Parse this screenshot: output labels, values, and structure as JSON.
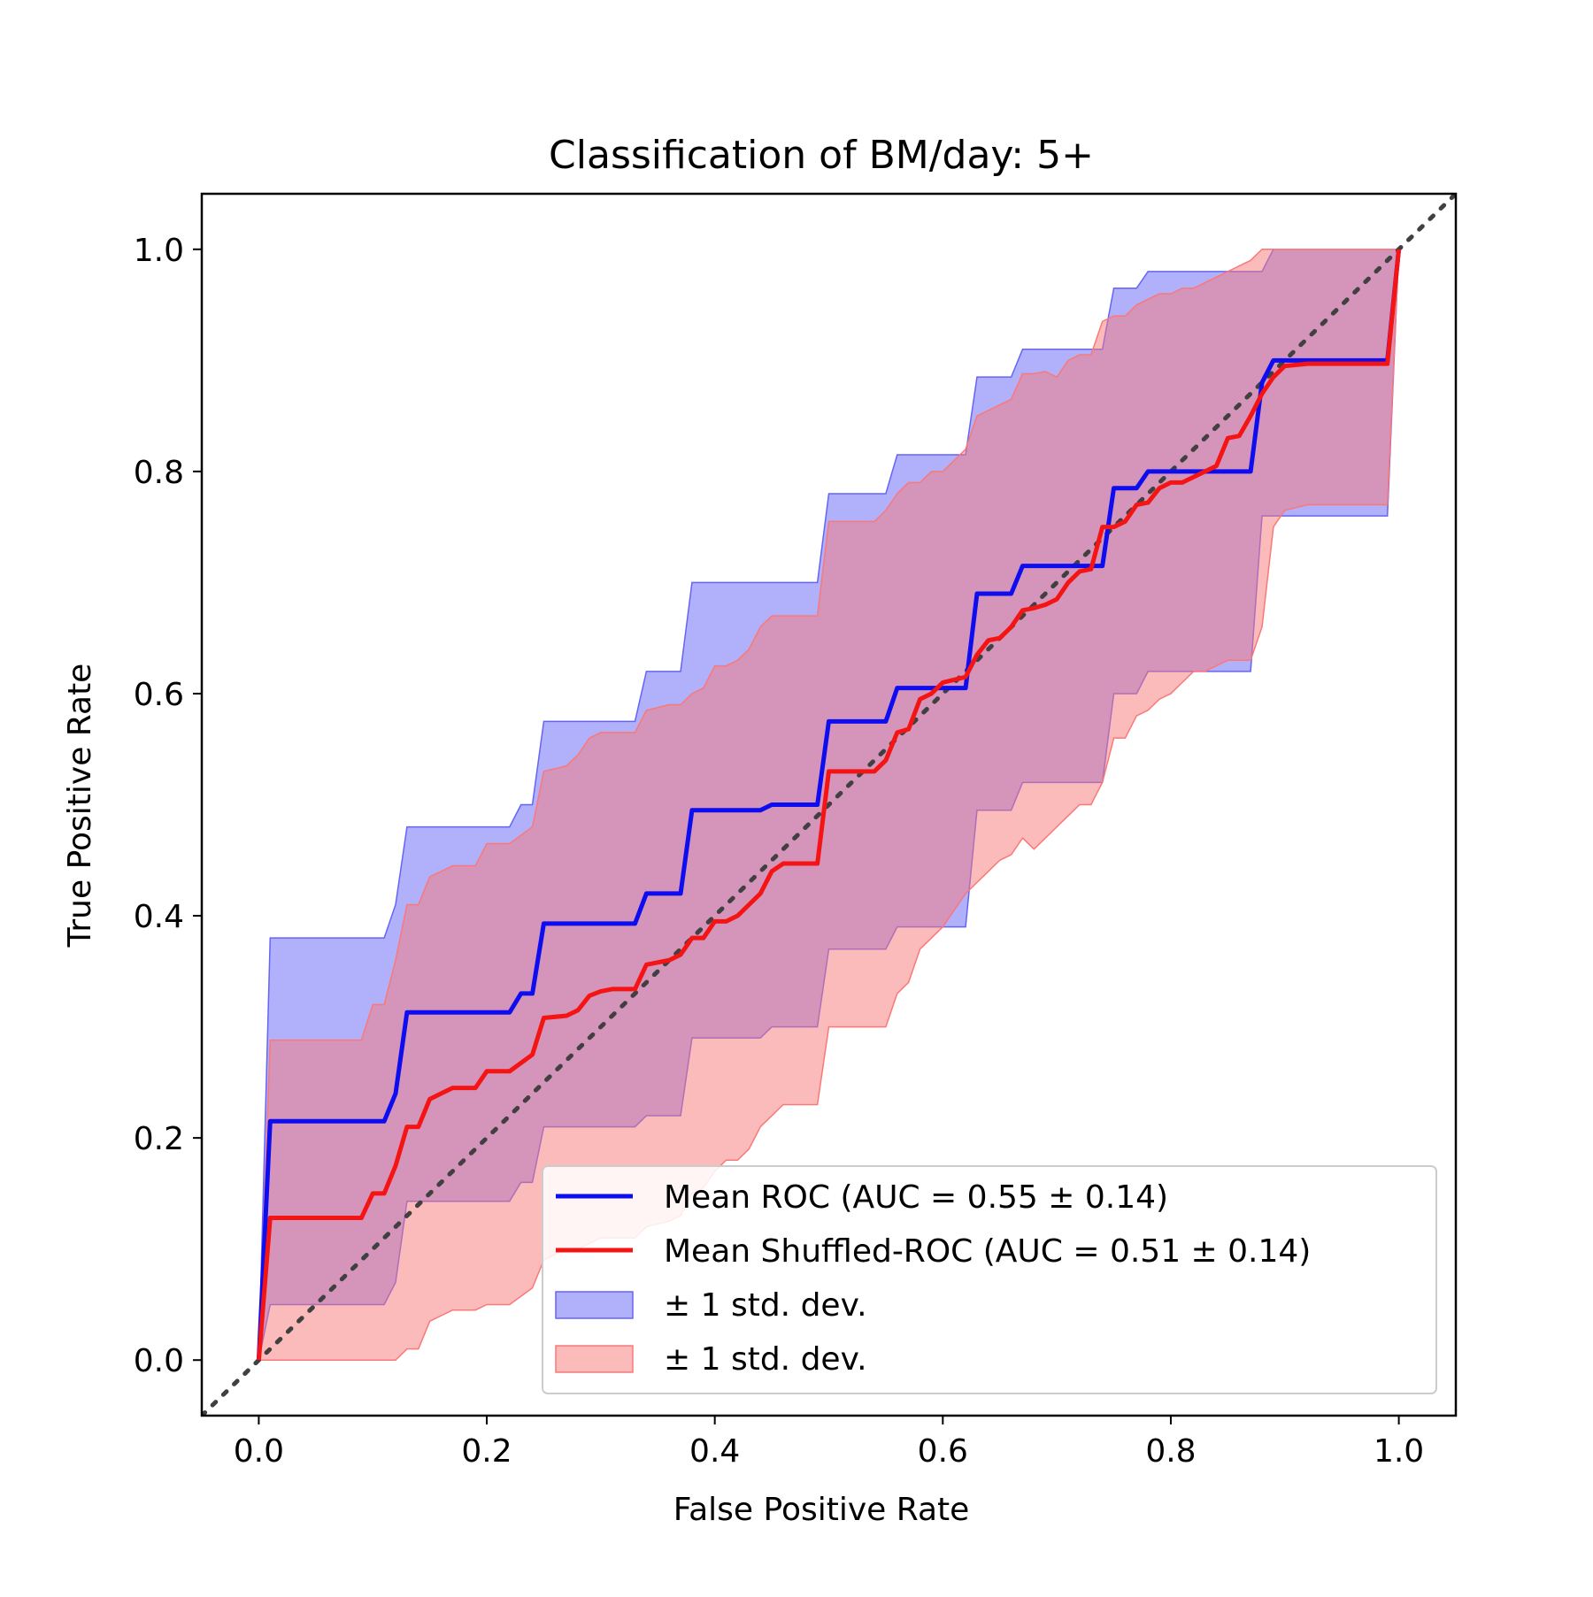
{
  "chart_data": {
    "type": "line",
    "title": "Classification of BM/day: 5+",
    "xlabel": "False Positive Rate",
    "ylabel": "True Positive Rate",
    "xlim": [
      -0.05,
      1.05
    ],
    "ylim": [
      -0.05,
      1.05
    ],
    "xticks": [
      "0.0",
      "0.2",
      "0.4",
      "0.6",
      "0.8",
      "1.0"
    ],
    "yticks": [
      "0.0",
      "0.2",
      "0.4",
      "0.6",
      "0.8",
      "1.0"
    ],
    "grid": false,
    "legend_position": "lower-right",
    "colors": {
      "roc": "#0d0df0",
      "shuffled": "#f51414",
      "band_blue": "#6464f8",
      "band_red": "#fa7878",
      "chance": "#404040"
    },
    "chance_line": {
      "x": [
        -0.05,
        1.05
      ],
      "y": [
        -0.05,
        1.05
      ],
      "style": "dotted"
    },
    "series": [
      {
        "name": "Mean ROC (AUC = 0.55 ± 0.14)",
        "x": [
          0.0,
          0.01,
          0.11,
          0.12,
          0.13,
          0.22,
          0.23,
          0.24,
          0.25,
          0.33,
          0.34,
          0.37,
          0.38,
          0.44,
          0.45,
          0.49,
          0.5,
          0.55,
          0.56,
          0.62,
          0.63,
          0.66,
          0.67,
          0.74,
          0.75,
          0.77,
          0.78,
          0.87,
          0.88,
          0.89,
          0.99,
          1.0
        ],
        "y": [
          0.0,
          0.215,
          0.215,
          0.24,
          0.313,
          0.313,
          0.33,
          0.33,
          0.393,
          0.393,
          0.42,
          0.42,
          0.495,
          0.495,
          0.5,
          0.5,
          0.575,
          0.575,
          0.605,
          0.605,
          0.69,
          0.69,
          0.715,
          0.715,
          0.785,
          0.785,
          0.8,
          0.8,
          0.88,
          0.9,
          0.9,
          1.0
        ]
      },
      {
        "name": "Mean Shuffled-ROC (AUC = 0.51 ± 0.14)",
        "x": [
          0.0,
          0.01,
          0.09,
          0.1,
          0.11,
          0.12,
          0.13,
          0.14,
          0.15,
          0.16,
          0.17,
          0.19,
          0.2,
          0.22,
          0.24,
          0.25,
          0.27,
          0.28,
          0.29,
          0.3,
          0.31,
          0.33,
          0.34,
          0.36,
          0.37,
          0.38,
          0.39,
          0.4,
          0.41,
          0.42,
          0.43,
          0.44,
          0.45,
          0.46,
          0.49,
          0.5,
          0.54,
          0.55,
          0.56,
          0.57,
          0.58,
          0.59,
          0.6,
          0.62,
          0.63,
          0.64,
          0.65,
          0.66,
          0.67,
          0.68,
          0.69,
          0.7,
          0.71,
          0.72,
          0.73,
          0.74,
          0.75,
          0.76,
          0.77,
          0.78,
          0.79,
          0.8,
          0.81,
          0.82,
          0.83,
          0.84,
          0.85,
          0.86,
          0.87,
          0.88,
          0.89,
          0.9,
          0.92,
          0.99,
          1.0
        ],
        "y": [
          0.0,
          0.128,
          0.128,
          0.15,
          0.15,
          0.175,
          0.21,
          0.21,
          0.235,
          0.24,
          0.245,
          0.245,
          0.26,
          0.26,
          0.275,
          0.308,
          0.31,
          0.315,
          0.328,
          0.332,
          0.334,
          0.334,
          0.356,
          0.36,
          0.365,
          0.38,
          0.38,
          0.395,
          0.395,
          0.4,
          0.41,
          0.42,
          0.44,
          0.447,
          0.447,
          0.53,
          0.53,
          0.54,
          0.565,
          0.568,
          0.595,
          0.6,
          0.61,
          0.615,
          0.635,
          0.648,
          0.65,
          0.66,
          0.675,
          0.677,
          0.68,
          0.685,
          0.7,
          0.71,
          0.712,
          0.75,
          0.75,
          0.755,
          0.77,
          0.772,
          0.785,
          0.79,
          0.79,
          0.795,
          0.8,
          0.805,
          0.83,
          0.832,
          0.85,
          0.87,
          0.885,
          0.895,
          0.897,
          0.897,
          1.0
        ]
      }
    ],
    "bands": [
      {
        "name": "± 1 std. dev.",
        "color": "#6464f8",
        "x": [
          0.0,
          0.01,
          0.11,
          0.12,
          0.13,
          0.22,
          0.23,
          0.24,
          0.25,
          0.33,
          0.34,
          0.37,
          0.38,
          0.44,
          0.45,
          0.49,
          0.5,
          0.55,
          0.56,
          0.62,
          0.63,
          0.66,
          0.67,
          0.74,
          0.75,
          0.77,
          0.78,
          0.87,
          0.88,
          0.89,
          0.99,
          1.0
        ],
        "upper": [
          0.0,
          0.38,
          0.38,
          0.41,
          0.48,
          0.48,
          0.5,
          0.5,
          0.575,
          0.575,
          0.62,
          0.62,
          0.7,
          0.7,
          0.7,
          0.7,
          0.78,
          0.78,
          0.815,
          0.815,
          0.885,
          0.885,
          0.91,
          0.91,
          0.965,
          0.965,
          0.98,
          0.98,
          0.98,
          1.0,
          1.0,
          1.0
        ],
        "lower": [
          0.0,
          0.05,
          0.05,
          0.07,
          0.143,
          0.143,
          0.16,
          0.16,
          0.21,
          0.21,
          0.22,
          0.22,
          0.29,
          0.29,
          0.3,
          0.3,
          0.37,
          0.37,
          0.39,
          0.39,
          0.495,
          0.495,
          0.52,
          0.52,
          0.6,
          0.6,
          0.62,
          0.62,
          0.76,
          0.76,
          0.76,
          1.0
        ]
      },
      {
        "name": "± 1 std. dev.",
        "color": "#fa7878",
        "x": [
          0.0,
          0.01,
          0.09,
          0.1,
          0.11,
          0.12,
          0.13,
          0.14,
          0.15,
          0.16,
          0.17,
          0.19,
          0.2,
          0.22,
          0.24,
          0.25,
          0.27,
          0.28,
          0.29,
          0.3,
          0.31,
          0.33,
          0.34,
          0.36,
          0.37,
          0.38,
          0.39,
          0.4,
          0.41,
          0.42,
          0.43,
          0.44,
          0.45,
          0.46,
          0.49,
          0.5,
          0.54,
          0.55,
          0.56,
          0.57,
          0.58,
          0.59,
          0.6,
          0.62,
          0.63,
          0.64,
          0.65,
          0.66,
          0.67,
          0.68,
          0.69,
          0.7,
          0.71,
          0.72,
          0.73,
          0.74,
          0.75,
          0.76,
          0.77,
          0.78,
          0.79,
          0.8,
          0.81,
          0.82,
          0.83,
          0.84,
          0.85,
          0.86,
          0.87,
          0.88,
          0.89,
          0.9,
          0.92,
          0.99,
          1.0
        ],
        "upper": [
          0.0,
          0.288,
          0.288,
          0.32,
          0.32,
          0.36,
          0.41,
          0.41,
          0.435,
          0.44,
          0.445,
          0.445,
          0.465,
          0.465,
          0.48,
          0.53,
          0.535,
          0.545,
          0.56,
          0.565,
          0.565,
          0.565,
          0.585,
          0.59,
          0.59,
          0.6,
          0.605,
          0.625,
          0.625,
          0.63,
          0.64,
          0.66,
          0.67,
          0.67,
          0.67,
          0.755,
          0.755,
          0.765,
          0.78,
          0.79,
          0.79,
          0.8,
          0.8,
          0.82,
          0.85,
          0.855,
          0.86,
          0.865,
          0.888,
          0.888,
          0.89,
          0.885,
          0.9,
          0.905,
          0.905,
          0.935,
          0.94,
          0.94,
          0.95,
          0.955,
          0.96,
          0.96,
          0.965,
          0.965,
          0.97,
          0.975,
          0.98,
          0.985,
          0.99,
          1.0,
          1.0,
          1.0,
          1.0,
          1.0,
          1.0
        ],
        "lower": [
          0.0,
          0.0,
          0.0,
          0.0,
          0.0,
          0.0,
          0.01,
          0.01,
          0.035,
          0.04,
          0.045,
          0.045,
          0.05,
          0.05,
          0.065,
          0.09,
          0.1,
          0.1,
          0.105,
          0.11,
          0.11,
          0.11,
          0.12,
          0.125,
          0.13,
          0.15,
          0.155,
          0.17,
          0.18,
          0.18,
          0.19,
          0.21,
          0.22,
          0.23,
          0.23,
          0.3,
          0.3,
          0.3,
          0.33,
          0.34,
          0.37,
          0.38,
          0.39,
          0.42,
          0.43,
          0.44,
          0.45,
          0.455,
          0.47,
          0.46,
          0.47,
          0.48,
          0.49,
          0.5,
          0.5,
          0.52,
          0.56,
          0.56,
          0.58,
          0.585,
          0.595,
          0.6,
          0.61,
          0.62,
          0.62,
          0.625,
          0.63,
          0.63,
          0.63,
          0.66,
          0.75,
          0.765,
          0.77,
          0.77,
          1.0
        ]
      }
    ],
    "legend": [
      {
        "label": "Mean ROC (AUC = 0.55 ± 0.14)",
        "kind": "line",
        "color": "#0d0df0"
      },
      {
        "label": "Mean Shuffled-ROC (AUC = 0.51 ± 0.14)",
        "kind": "line",
        "color": "#f51414"
      },
      {
        "label": "± 1 std. dev.",
        "kind": "patch",
        "color": "#6464f8"
      },
      {
        "label": "± 1 std. dev.",
        "kind": "patch",
        "color": "#fa7878"
      }
    ]
  }
}
